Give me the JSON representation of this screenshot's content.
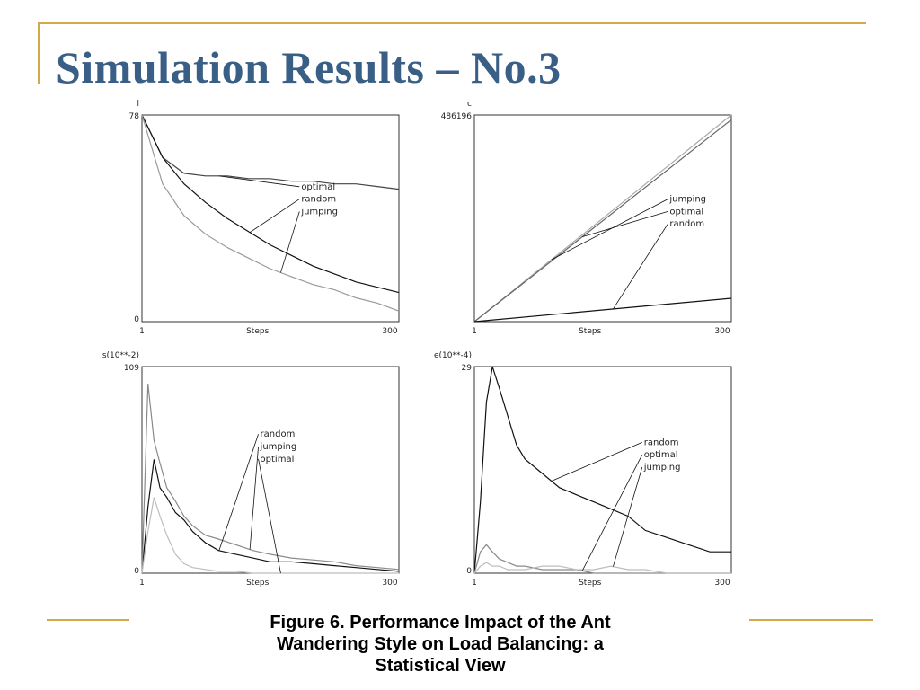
{
  "slide": {
    "title": "Simulation Results – No.3",
    "caption_lines": [
      "Figure 6. Performance Impact of the Ant",
      "Wandering Style on Load Balancing: a",
      "Statistical View"
    ],
    "accent_color": "#d4a84b",
    "title_color": "#3a5f86"
  },
  "chart_data": [
    {
      "type": "line",
      "ylabel": "l",
      "ymax_label": "78",
      "ymin_label": "0",
      "xlabel": "Steps",
      "xlim": [
        1,
        300
      ],
      "ylim": [
        0,
        78
      ],
      "x_ticks": [
        "1",
        "300"
      ],
      "x": [
        1,
        25,
        50,
        75,
        100,
        125,
        150,
        175,
        200,
        225,
        250,
        275,
        300
      ],
      "series": [
        {
          "name": "optimal",
          "color": "#444444",
          "values": [
            78,
            62,
            56,
            55,
            55,
            54,
            54,
            53,
            53,
            52,
            52,
            51,
            50
          ]
        },
        {
          "name": "random",
          "color": "#111111",
          "values": [
            78,
            62,
            52,
            45,
            39,
            34,
            29,
            25,
            21,
            18,
            15,
            13,
            11
          ]
        },
        {
          "name": "jumping",
          "color": "#9a9a9a",
          "values": [
            78,
            52,
            40,
            33,
            28,
            24,
            20,
            17,
            14,
            12,
            9,
            7,
            4
          ]
        }
      ],
      "annotations": [
        "optimal",
        "random",
        "jumping"
      ]
    },
    {
      "type": "line",
      "ylabel": "c",
      "ymax_label": "486196",
      "xlabel": "Steps",
      "xlim": [
        1,
        300
      ],
      "ylim": [
        0,
        486196
      ],
      "x_ticks": [
        "1",
        "300"
      ],
      "x": [
        1,
        300
      ],
      "series": [
        {
          "name": "jumping",
          "color": "#aaaaaa",
          "values": [
            0,
            486196
          ]
        },
        {
          "name": "optimal",
          "color": "#666666",
          "values": [
            0,
            475000
          ]
        },
        {
          "name": "random",
          "color": "#111111",
          "values": [
            0,
            55000
          ]
        }
      ],
      "annotations": [
        "jumping",
        "optimal",
        "random"
      ]
    },
    {
      "type": "line",
      "ylabel": "s(10**-2)",
      "ymax_label": "109",
      "ymin_label": "0",
      "xlabel": "Steps",
      "xlim": [
        1,
        300
      ],
      "ylim": [
        0,
        109
      ],
      "x_ticks": [
        "1",
        "300"
      ],
      "x": [
        1,
        8,
        15,
        22,
        30,
        40,
        50,
        60,
        75,
        90,
        110,
        130,
        150,
        175,
        200,
        225,
        250,
        275,
        300
      ],
      "series": [
        {
          "name": "random",
          "color": "#111111",
          "values": [
            0,
            35,
            60,
            45,
            40,
            32,
            28,
            22,
            16,
            12,
            10,
            8,
            6,
            6,
            5,
            4,
            3,
            2,
            1
          ]
        },
        {
          "name": "jumping",
          "color": "#8a8a8a",
          "values": [
            0,
            100,
            70,
            58,
            45,
            38,
            30,
            25,
            20,
            18,
            15,
            12,
            10,
            8,
            7,
            6,
            4,
            3,
            2
          ]
        },
        {
          "name": "optimal",
          "color": "#bdbdbd",
          "values": [
            0,
            22,
            40,
            30,
            20,
            10,
            5,
            3,
            2,
            1,
            1,
            0,
            0,
            0,
            0,
            0,
            0,
            0,
            0
          ]
        }
      ],
      "annotations": [
        "random",
        "jumping",
        "optimal"
      ]
    },
    {
      "type": "line",
      "ylabel": "e(10**-4)",
      "ymax_label": "29",
      "ymin_label": "0",
      "xlabel": "Steps",
      "xlim": [
        1,
        300
      ],
      "ylim": [
        0,
        29
      ],
      "x_ticks": [
        "1",
        "300"
      ],
      "x": [
        1,
        8,
        15,
        22,
        30,
        40,
        50,
        60,
        80,
        100,
        120,
        140,
        160,
        180,
        200,
        225,
        250,
        275,
        300
      ],
      "series": [
        {
          "name": "random",
          "color": "#111111",
          "values": [
            0,
            10,
            24,
            29,
            26,
            22,
            18,
            16,
            14,
            12,
            11,
            10,
            9,
            8,
            6,
            5,
            4,
            3,
            3
          ]
        },
        {
          "name": "optimal",
          "color": "#8a8a8a",
          "values": [
            0,
            3,
            4,
            3,
            2,
            1.5,
            1,
            1,
            0.5,
            0.5,
            0.5,
            0,
            0,
            0,
            0,
            0,
            0,
            0,
            0
          ]
        },
        {
          "name": "jumping",
          "color": "#bdbdbd",
          "values": [
            0,
            1,
            1.5,
            1,
            1,
            0.5,
            0.5,
            0.5,
            1,
            1,
            0.5,
            0.5,
            1,
            0.5,
            0.5,
            0,
            0,
            0,
            0
          ]
        }
      ],
      "annotations": [
        "random",
        "optimal",
        "jumping"
      ]
    }
  ]
}
